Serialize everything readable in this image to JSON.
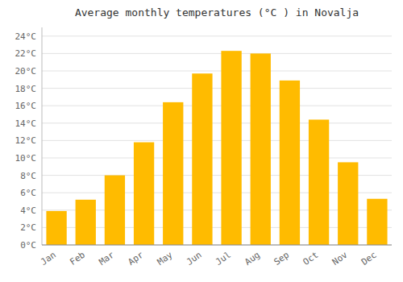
{
  "chart_data": {
    "type": "bar",
    "title": "Average monthly temperatures (°C ) in Novalja",
    "categories": [
      "Jan",
      "Feb",
      "Mar",
      "Apr",
      "May",
      "Jun",
      "Jul",
      "Aug",
      "Sep",
      "Oct",
      "Nov",
      "Dec"
    ],
    "values": [
      3.9,
      5.2,
      8.0,
      11.8,
      16.4,
      19.7,
      22.3,
      22.0,
      18.9,
      14.4,
      9.5,
      5.3
    ],
    "color": "#FFBB00",
    "ylim": [
      0,
      25
    ],
    "yticks": [
      {
        "value": 0,
        "label": "0°C"
      },
      {
        "value": 2,
        "label": "2°C"
      },
      {
        "value": 4,
        "label": "4°C"
      },
      {
        "value": 6,
        "label": "6°C"
      },
      {
        "value": 8,
        "label": "8°C"
      },
      {
        "value": 10,
        "label": "10°C"
      },
      {
        "value": 12,
        "label": "12°C"
      },
      {
        "value": 14,
        "label": "14°C"
      },
      {
        "value": 16,
        "label": "16°C"
      },
      {
        "value": 18,
        "label": "18°C"
      },
      {
        "value": 20,
        "label": "20°C"
      },
      {
        "value": 22,
        "label": "22°C"
      },
      {
        "value": 24,
        "label": "24°C"
      }
    ],
    "grid": true
  }
}
